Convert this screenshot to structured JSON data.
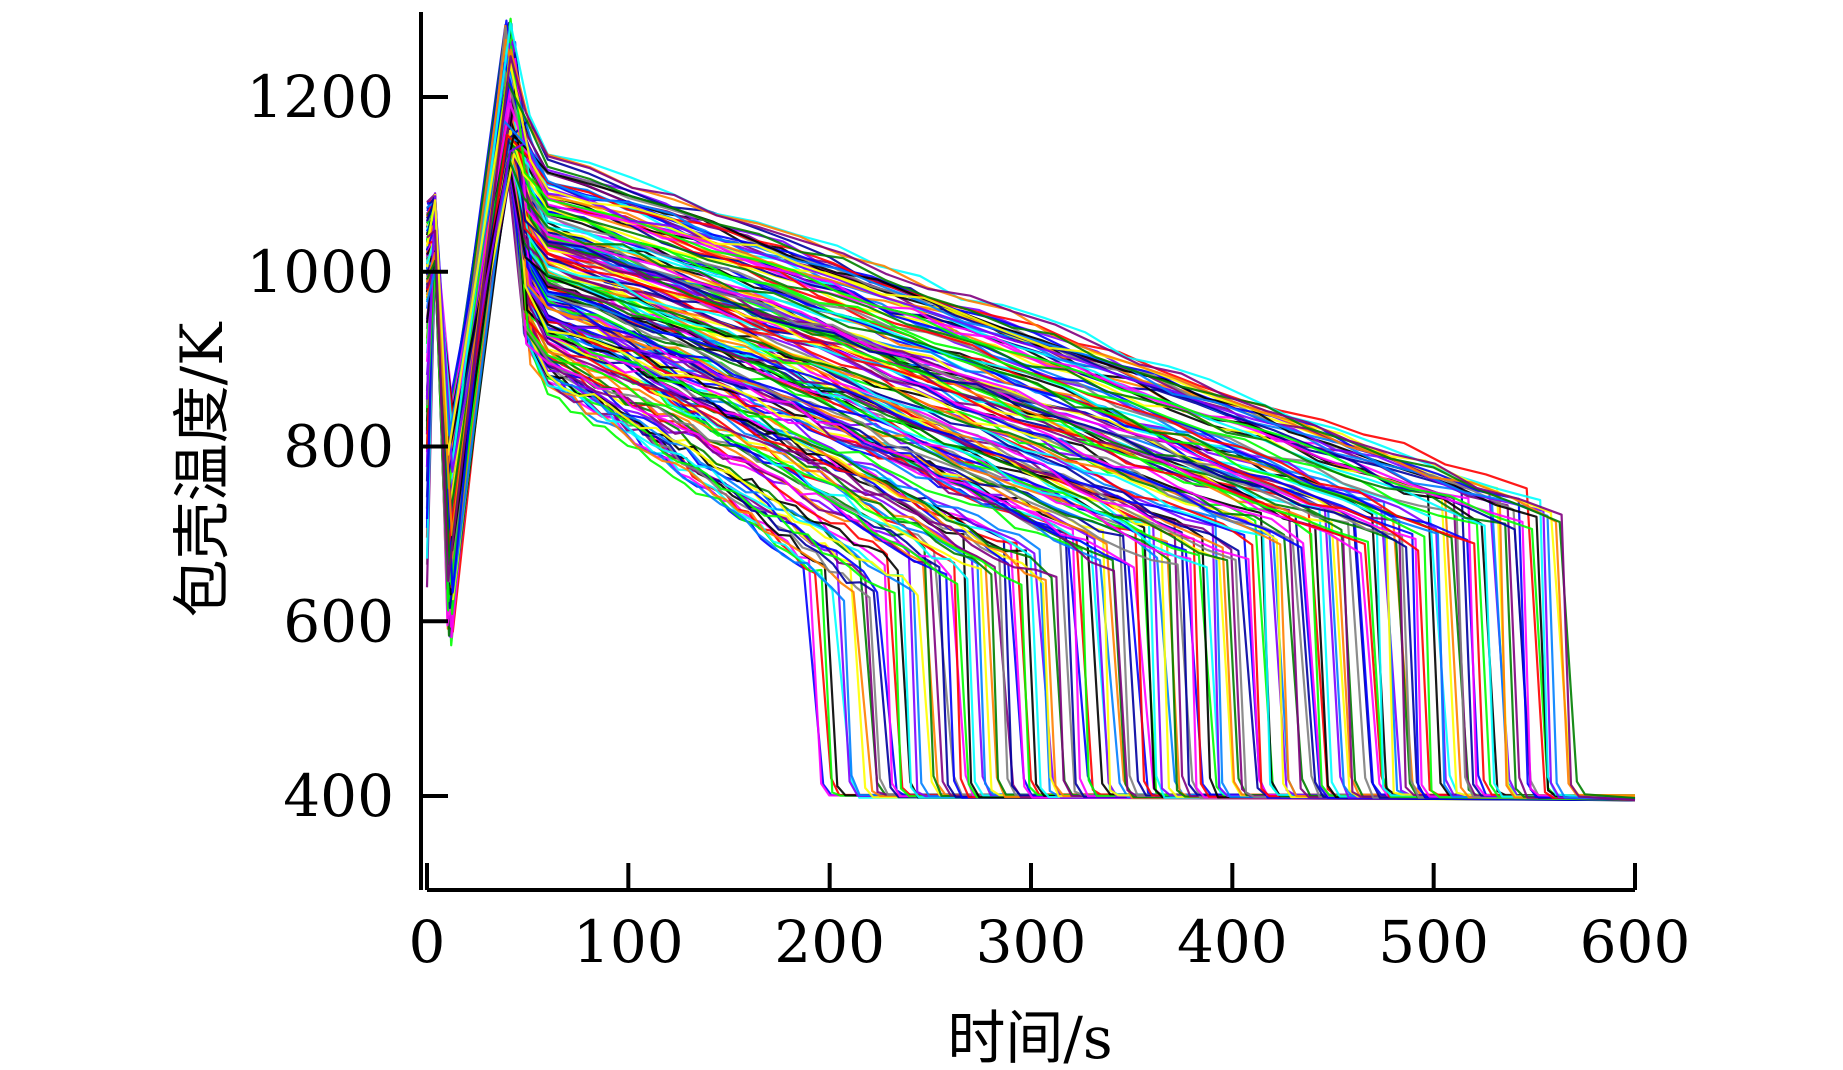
{
  "chart_data": {
    "type": "line",
    "title": "",
    "xlabel": "时间/s",
    "ylabel": "包壳温度/K",
    "xlim": [
      0,
      600
    ],
    "ylim": [
      300,
      1300
    ],
    "x_ticks": [
      0,
      100,
      200,
      300,
      400,
      500,
      600
    ],
    "y_ticks": [
      400,
      600,
      800,
      1000,
      1200
    ],
    "x_tick_labels": [
      "0",
      "100",
      "200",
      "300",
      "400",
      "500",
      "600"
    ],
    "y_tick_labels": [
      "400",
      "600",
      "800",
      "1000",
      "1200"
    ],
    "grid": false,
    "legend": "none",
    "series_count": 180,
    "floor_value": 400,
    "palette": [
      "#0000ff",
      "#ff00ff",
      "#ff0000",
      "#00ff00",
      "#000000",
      "#00ffff",
      "#7f00ff",
      "#0080ff",
      "#ffff00",
      "#ff8000",
      "#008000",
      "#800080",
      "#808080",
      "#0000a0"
    ],
    "envelope": {
      "initial_spike_x": [
        0,
        10,
        40,
        50,
        60
      ],
      "peak_range": [
        1080,
        1290
      ],
      "drop_time_range": [
        185,
        565
      ]
    }
  }
}
